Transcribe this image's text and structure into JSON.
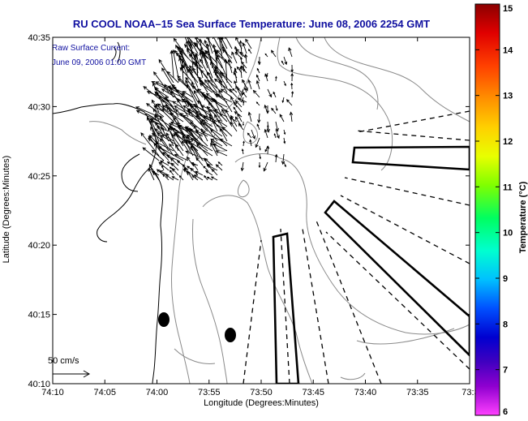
{
  "title": "RU COOL  NOAA–15  Sea Surface Temperature:  June 08, 2006 2254 GMT",
  "current_legend": {
    "line1": "Raw Surface Current:",
    "line2": "June 09, 2006 01:00 GMT"
  },
  "scale": {
    "label": "50 cm/s"
  },
  "axes": {
    "xlabel": "Longitude (Degrees:Minutes)",
    "ylabel": "Latitude (Degrees:Minutes)",
    "x_ticks": [
      "74:10",
      "74:05",
      "74:00",
      "73:55",
      "73:50",
      "73:45",
      "73:40",
      "73:35",
      "73:3"
    ],
    "y_ticks": [
      "40:35",
      "40:30",
      "40:25",
      "40:20",
      "40:15",
      "40:10"
    ]
  },
  "colorbar": {
    "title": "Temperature (°C)",
    "ticks": [
      "15",
      "14",
      "13",
      "12",
      "11",
      "10",
      "9",
      "8",
      "7",
      "6"
    ],
    "min": 6,
    "max": 15,
    "gradient": [
      "#8b0000",
      "#e00000",
      "#ff4000",
      "#ff9000",
      "#ffd000",
      "#e8ff00",
      "#80ff00",
      "#00ff60",
      "#00ffd0",
      "#00c0ff",
      "#0050ff",
      "#0000d0",
      "#4000c0",
      "#9000d0",
      "#ff40ff"
    ]
  },
  "colors": {
    "title": "#1010a0",
    "legend_text": "#1010a0",
    "contour": "#8a8a8a",
    "frame": "#000000"
  },
  "markers": [
    "buoy",
    "buoy"
  ]
}
